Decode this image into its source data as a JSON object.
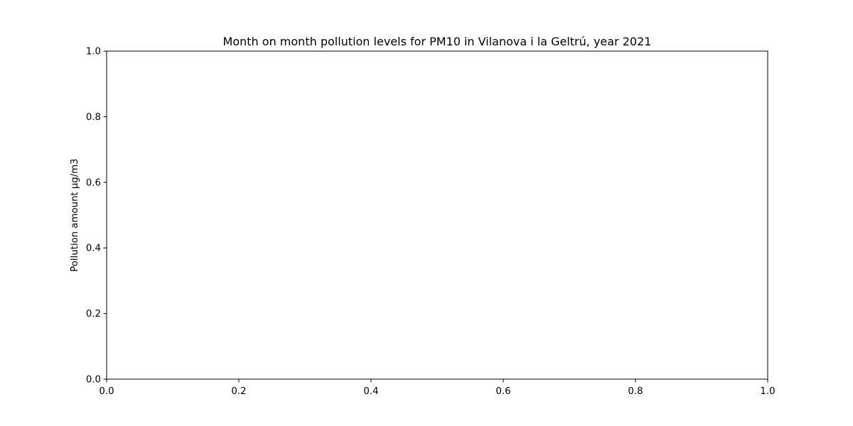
{
  "chart_data": {
    "type": "line",
    "title": "Month on month pollution levels for PM10 in Vilanova i la Geltrú, year 2021",
    "xlabel": "",
    "ylabel": "Pollution amount µg/m3",
    "xlim": [
      0.0,
      1.0
    ],
    "ylim": [
      0.0,
      1.0
    ],
    "x_ticks": [
      "0.0",
      "0.2",
      "0.4",
      "0.6",
      "0.8",
      "1.0"
    ],
    "y_ticks": [
      "0.0",
      "0.2",
      "0.4",
      "0.6",
      "0.8",
      "1.0"
    ],
    "grid": false,
    "series": []
  }
}
